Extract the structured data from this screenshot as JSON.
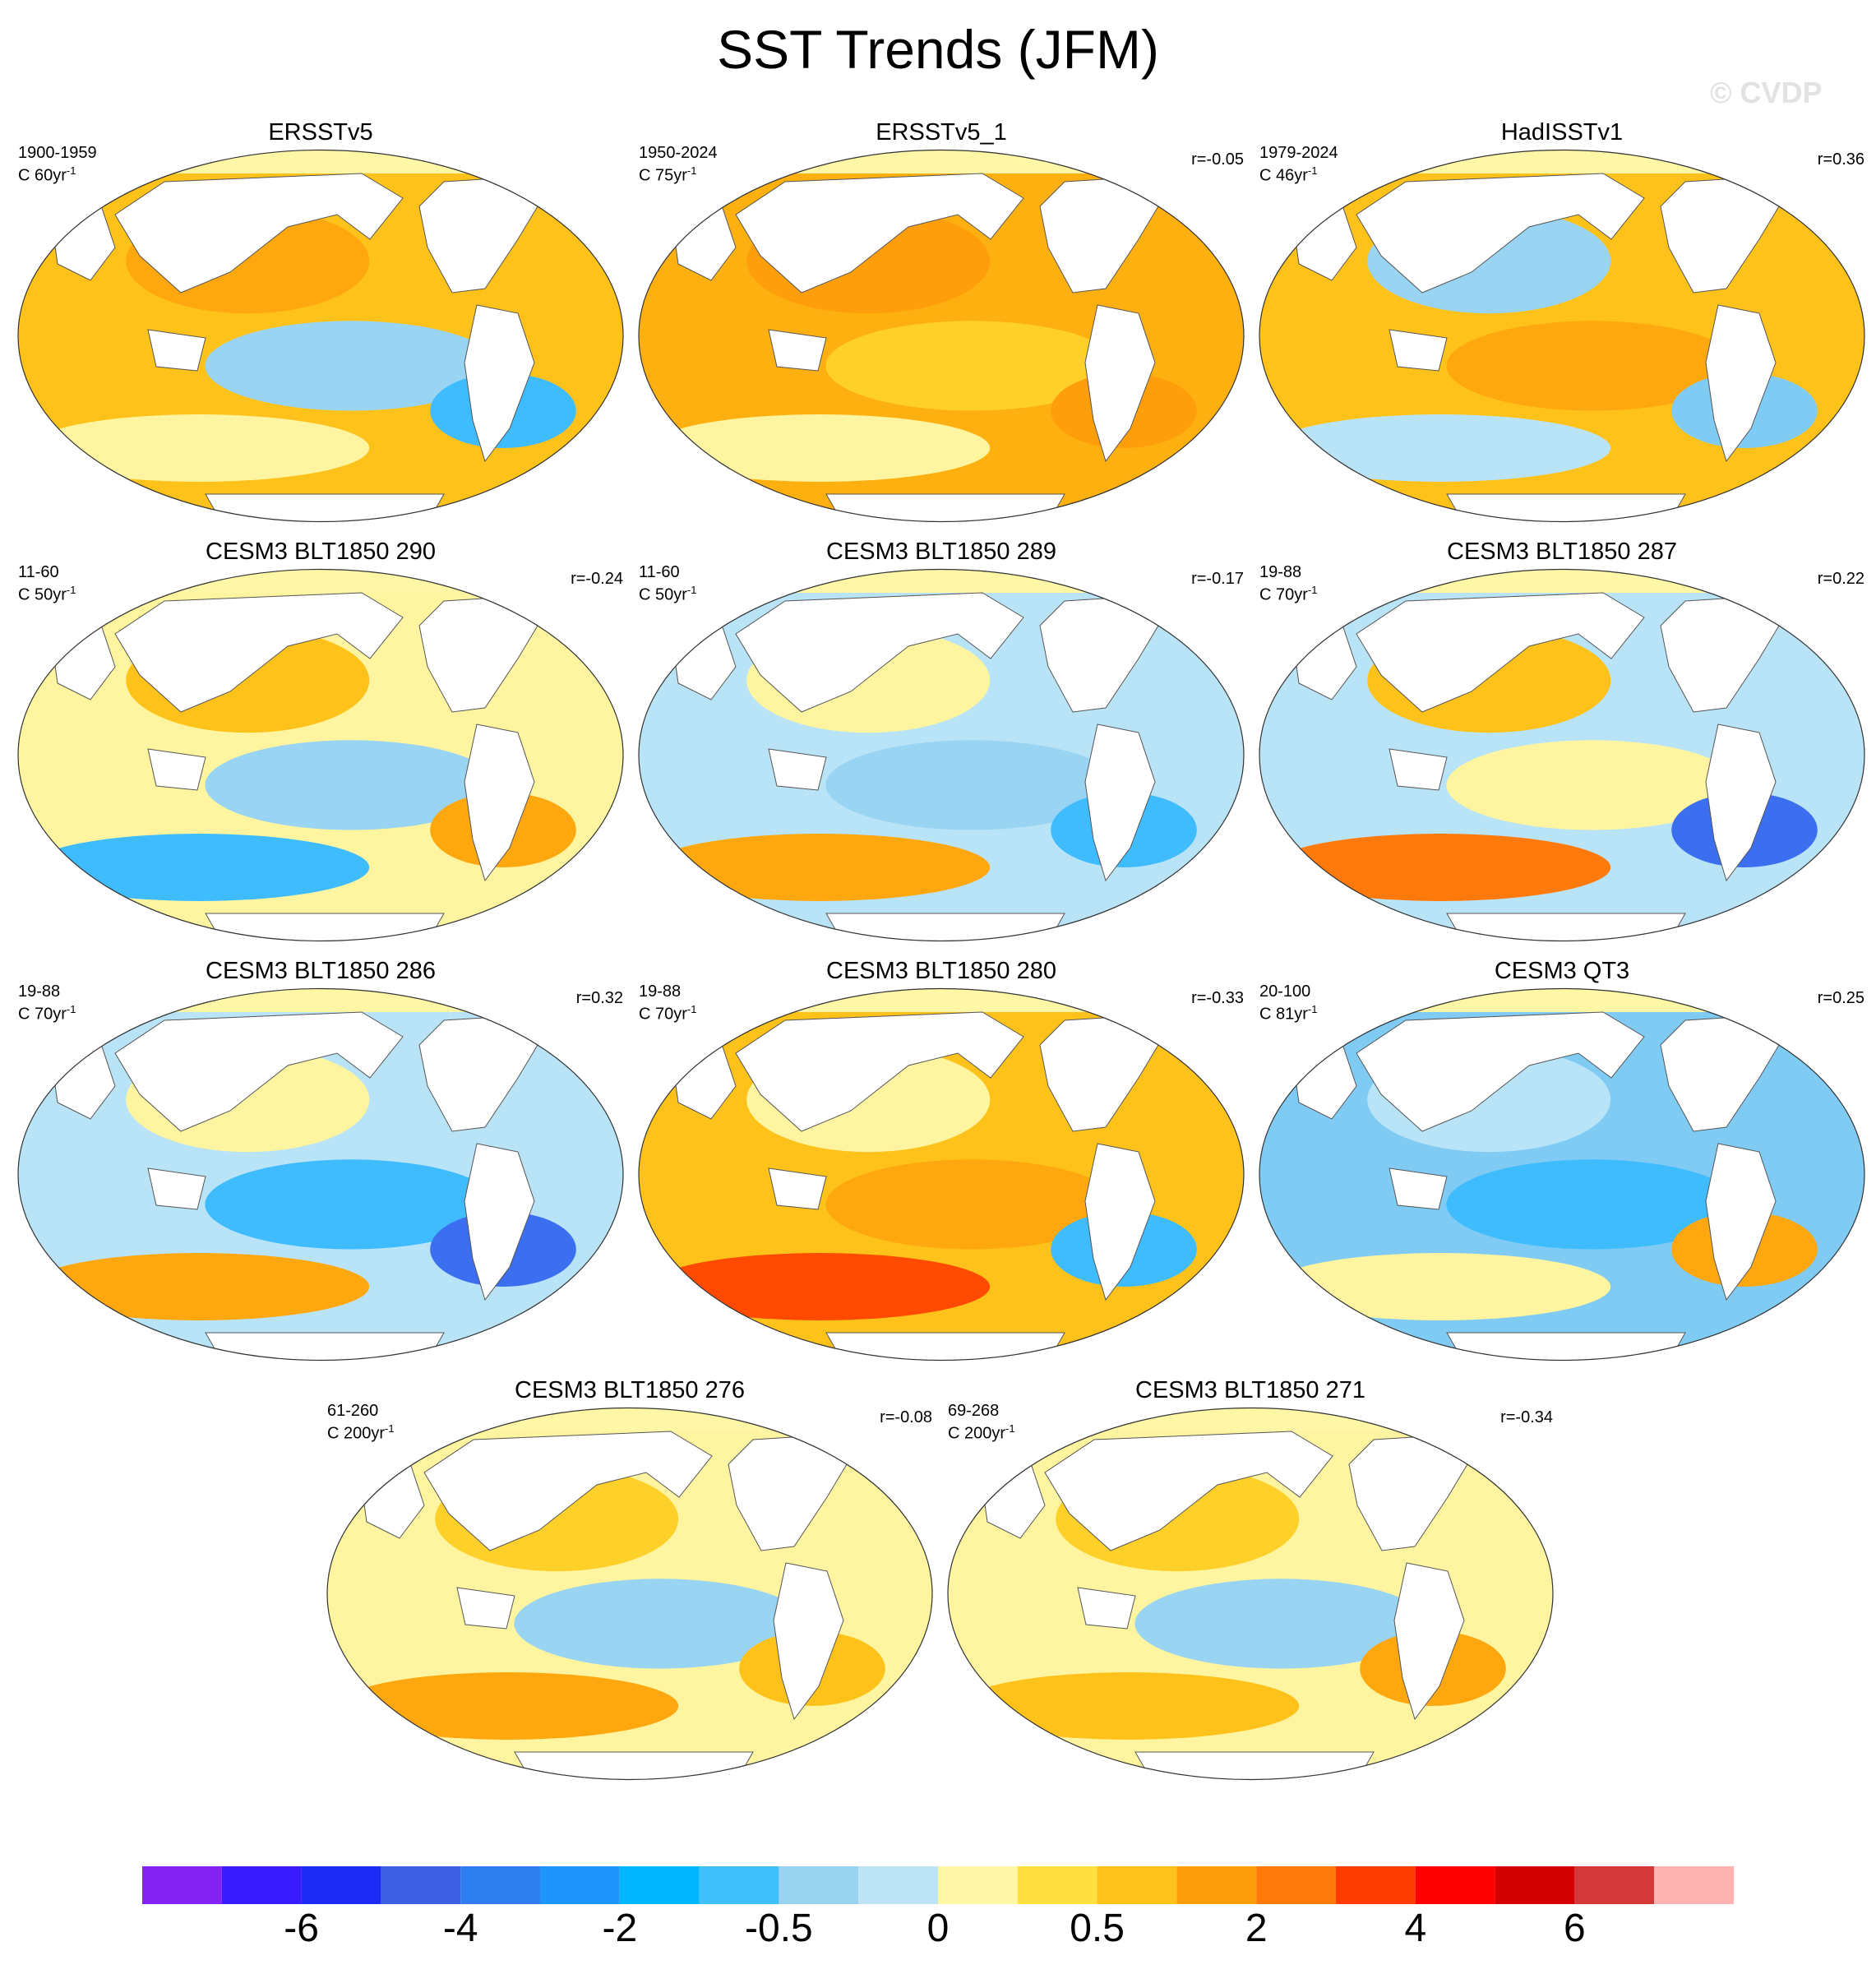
{
  "title": "SST Trends (JFM)",
  "watermark": "© CVDP",
  "panels": [
    {
      "title": "ERSSTv5",
      "years": "1900-1959",
      "trend": "C 60yr",
      "trend_exp": "-1",
      "r": "",
      "fill": "#ffc21a",
      "blobs": [
        {
          "c": "#ffa70f"
        },
        {
          "c": "#99d4f2"
        },
        {
          "c": "#fff5a0"
        },
        {
          "c": "#3fbcfe"
        }
      ]
    },
    {
      "title": "ERSSTv5_1",
      "years": "1950-2024",
      "trend": "C 75yr",
      "trend_exp": "-1",
      "r": "r=-0.05",
      "fill": "#ffb011",
      "blobs": [
        {
          "c": "#ff9e0b"
        },
        {
          "c": "#ffd02a"
        },
        {
          "c": "#fff5a0"
        },
        {
          "c": "#ff9e0b"
        }
      ]
    },
    {
      "title": "HadISSTv1",
      "years": "1979-2024",
      "trend": "C 46yr",
      "trend_exp": "-1",
      "r": "r=0.36",
      "fill": "#ffc21a",
      "blobs": [
        {
          "c": "#99d4f2"
        },
        {
          "c": "#ffa70f"
        },
        {
          "c": "#b9e3f7"
        },
        {
          "c": "#7fcbf4"
        }
      ]
    },
    {
      "title": "CESM3 BLT1850 290",
      "years": "11-60",
      "trend": "C 50yr",
      "trend_exp": "-1",
      "r": "r=-0.24",
      "fill": "#fff5a0",
      "blobs": [
        {
          "c": "#ffc21a"
        },
        {
          "c": "#99d4f2"
        },
        {
          "c": "#3fbcfe"
        },
        {
          "c": "#ffa70f"
        }
      ]
    },
    {
      "title": "CESM3 BLT1850 289",
      "years": "11-60",
      "trend": "C 50yr",
      "trend_exp": "-1",
      "r": "r=-0.17",
      "fill": "#b9e3f7",
      "blobs": [
        {
          "c": "#fff5a0"
        },
        {
          "c": "#99d4f2"
        },
        {
          "c": "#ffa70f"
        },
        {
          "c": "#3fbcfe"
        }
      ]
    },
    {
      "title": "CESM3 BLT1850 287",
      "years": "19-88",
      "trend": "C 70yr",
      "trend_exp": "-1",
      "r": "r=0.22",
      "fill": "#b9e3f7",
      "blobs": [
        {
          "c": "#ffc21a"
        },
        {
          "c": "#fff5a0"
        },
        {
          "c": "#ff7a0a"
        },
        {
          "c": "#3c6ff0"
        }
      ]
    },
    {
      "title": "CESM3 BLT1850 286",
      "years": "19-88",
      "trend": "C 70yr",
      "trend_exp": "-1",
      "r": "r=0.32",
      "fill": "#b9e3f7",
      "blobs": [
        {
          "c": "#fff5a0"
        },
        {
          "c": "#3fbcfe"
        },
        {
          "c": "#ffa70f"
        },
        {
          "c": "#3c6ff0"
        }
      ]
    },
    {
      "title": "CESM3 BLT1850 280",
      "years": "19-88",
      "trend": "C 70yr",
      "trend_exp": "-1",
      "r": "r=-0.33",
      "fill": "#ffc21a",
      "blobs": [
        {
          "c": "#fff5a0"
        },
        {
          "c": "#ffa70f"
        },
        {
          "c": "#ff4a00"
        },
        {
          "c": "#3fbcfe"
        }
      ]
    },
    {
      "title": "CESM3 QT3",
      "years": "20-100",
      "trend": "C 81yr",
      "trend_exp": "-1",
      "r": "r=0.25",
      "fill": "#7fcbf4",
      "blobs": [
        {
          "c": "#b9e3f7"
        },
        {
          "c": "#3fbcfe"
        },
        {
          "c": "#fff5a0"
        },
        {
          "c": "#ffa70f"
        }
      ]
    },
    {
      "title": "CESM3 BLT1850 276",
      "years": "61-260",
      "trend": "C 200yr",
      "trend_exp": "-1",
      "r": "r=-0.08",
      "fill": "#fff5a0",
      "blobs": [
        {
          "c": "#ffd02a"
        },
        {
          "c": "#99d4f2"
        },
        {
          "c": "#ffa70f"
        },
        {
          "c": "#ffc21a"
        }
      ]
    },
    {
      "title": "CESM3 BLT1850 271",
      "years": "69-268",
      "trend": "C 200yr",
      "trend_exp": "-1",
      "r": "r=-0.34",
      "fill": "#fff5a0",
      "blobs": [
        {
          "c": "#ffd02a"
        },
        {
          "c": "#99d4f2"
        },
        {
          "c": "#ffc21a"
        },
        {
          "c": "#ffa70f"
        }
      ]
    }
  ],
  "colorbar": {
    "colors": [
      "#8422f2",
      "#3a1bff",
      "#1c2cf4",
      "#3c5ee0",
      "#2f7ef0",
      "#1e95fb",
      "#00b6ff",
      "#3fc0fb",
      "#99d3ef",
      "#bde4f5",
      "#fff7a6",
      "#ffe03e",
      "#ffc21a",
      "#ff9e0b",
      "#ff780a",
      "#ff3c00",
      "#ff0000",
      "#d40000",
      "#d43838",
      "#ffb2b2"
    ],
    "labels": [
      "-6",
      "-4",
      "-2",
      "-0.5",
      "0",
      "0.5",
      "2",
      "4",
      "6"
    ]
  }
}
